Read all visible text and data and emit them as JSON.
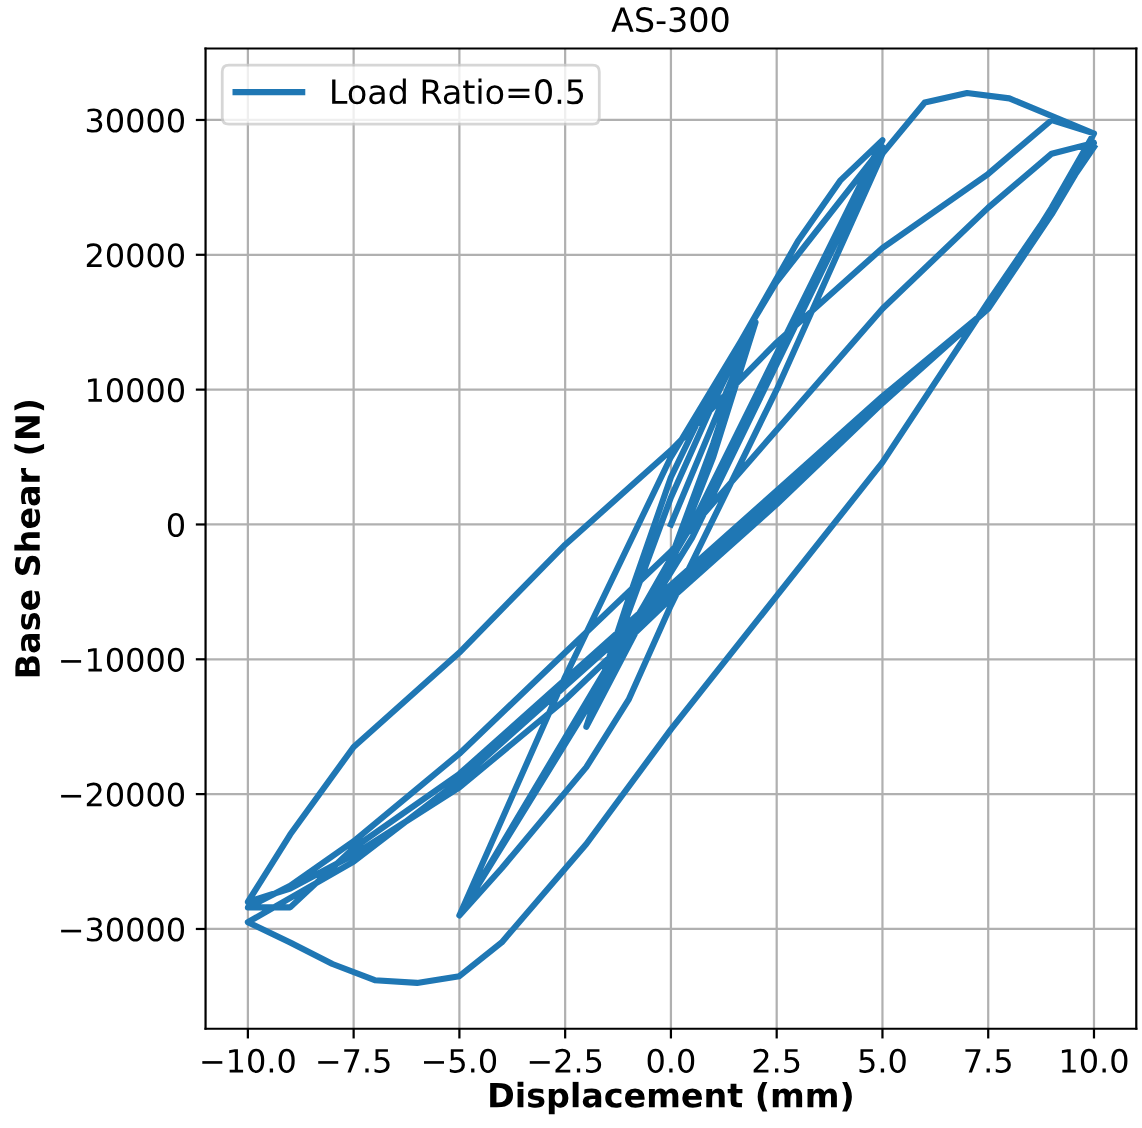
{
  "chart_data": {
    "type": "line",
    "title": "AS-300",
    "xlabel": "Displacement (mm)",
    "ylabel": "Base Shear (N)",
    "series": [
      {
        "name": "Load Ratio=0.5",
        "color": "#1f77b4",
        "x": [
          0,
          1,
          2,
          1,
          0,
          -1,
          -2,
          -1,
          0,
          1,
          2,
          1,
          0,
          -1,
          -2,
          -1,
          0,
          1,
          2,
          3,
          4,
          5,
          0.5,
          -5,
          -2.5,
          0,
          2.5,
          5,
          0.5,
          -5,
          -4,
          -2,
          -1,
          0,
          2.5,
          5,
          6,
          7,
          8,
          10,
          9,
          7.5,
          5,
          2.5,
          0,
          -2.5,
          -5,
          -7.5,
          -9,
          -10,
          -9,
          -7.5,
          -5,
          -2.5,
          0,
          2.5,
          5,
          7.5,
          9,
          10,
          9,
          7.5,
          5,
          2.5,
          0,
          -2.5,
          -5,
          -7.5,
          -9,
          -10,
          -9,
          -7.5,
          -5,
          -2.5,
          0,
          2.5,
          5,
          7.5,
          9,
          10,
          9,
          7.5,
          5,
          2.5,
          0,
          -2.5,
          -5,
          -7.5,
          -10,
          -9,
          -8,
          -7,
          -6,
          -5,
          -4,
          -2,
          0,
          2.5,
          5,
          7.5,
          10
        ],
        "values": [
          0,
          7500,
          15000,
          5000,
          -3000,
          -9000,
          -15000,
          -6500,
          2000,
          9000,
          15500,
          6000,
          -2500,
          -8000,
          -15000,
          -5500,
          3500,
          10000,
          15500,
          21000,
          25500,
          28500,
          0,
          -29000,
          -11300,
          5000,
          18000,
          28000,
          -1000,
          -29000,
          -25500,
          -18000,
          -13000,
          -6000,
          10000,
          27500,
          31300,
          32000,
          31600,
          29000,
          23500,
          16000,
          9000,
          1500,
          -5500,
          -13000,
          -19500,
          -24500,
          -27000,
          -28000,
          -23000,
          -16500,
          -9500,
          -1500,
          5500,
          13500,
          20500,
          26000,
          30000,
          29000,
          23000,
          16000,
          9500,
          2500,
          -4500,
          -11500,
          -18500,
          -24000,
          -28400,
          -28400,
          -26800,
          -23500,
          -17000,
          -9500,
          -2000,
          7000,
          16000,
          23500,
          27500,
          28300,
          23000,
          16000,
          9200,
          2000,
          -5000,
          -12000,
          -19000,
          -25000,
          -29500,
          -31000,
          -32600,
          -33800,
          -34000,
          -33500,
          -31000,
          -23700,
          -15200,
          -5300,
          4600,
          16500,
          28000
        ]
      }
    ],
    "xlim": [
      -11,
      11
    ],
    "xticks": [
      {
        "value": -10,
        "label": "−10.0"
      },
      {
        "value": -7.5,
        "label": "−7.5"
      },
      {
        "value": -5,
        "label": "−5.0"
      },
      {
        "value": -2.5,
        "label": "−2.5"
      },
      {
        "value": 0,
        "label": "0.0"
      },
      {
        "value": 2.5,
        "label": "2.5"
      },
      {
        "value": 5,
        "label": "5.0"
      },
      {
        "value": 7.5,
        "label": "7.5"
      },
      {
        "value": 10,
        "label": "10.0"
      }
    ],
    "ylim": [
      -37400,
      35300
    ],
    "yticks": [
      {
        "value": -30000,
        "label": "−30000"
      },
      {
        "value": -20000,
        "label": "−20000"
      },
      {
        "value": -10000,
        "label": "−10000"
      },
      0,
      10000,
      20000,
      30000
    ],
    "grid": true,
    "legend": "top left",
    "marker": "none",
    "line_style": "solid"
  }
}
